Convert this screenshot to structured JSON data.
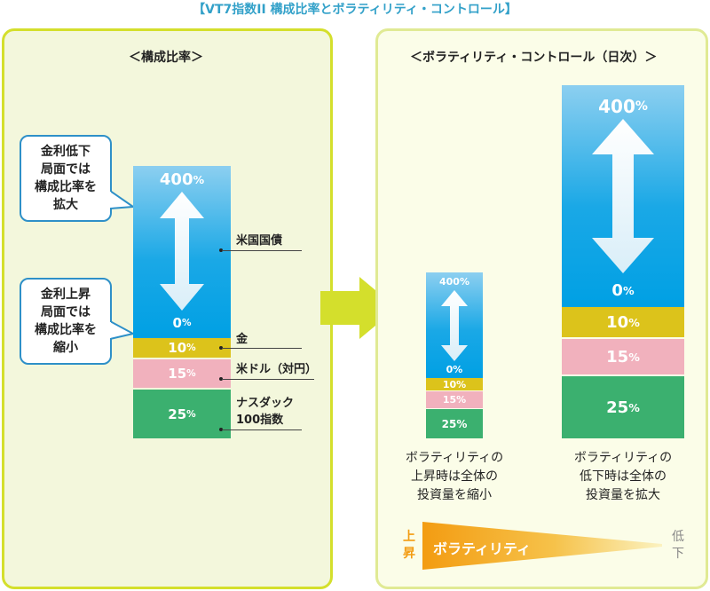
{
  "title": "【VT7指数II 構成比率とボラティリティ・コントロール】",
  "left": {
    "heading": "＜構成比率＞",
    "callout_top": "金利低下\n局面では\n構成比率を\n拡大",
    "callout_bottom": "金利上昇\n局面では\n構成比率を\n縮小",
    "bar": {
      "blue_top": "400",
      "blue_bottom": "0",
      "gold": "10",
      "pink": "15",
      "green": "25",
      "unit": "%"
    },
    "labels": {
      "treasury": "米国国債",
      "gold": "金",
      "usd": "米ドル（対円）",
      "nasdaq": "ナスダック\n100指数"
    }
  },
  "right": {
    "heading": "＜ボラティリティ・コントロール（日次）＞",
    "small_bar": {
      "blue_top": "400%",
      "blue_bottom": "0%",
      "gold": "10%",
      "pink": "15%",
      "green": "25%"
    },
    "large_bar": {
      "blue_top": "400",
      "blue_bottom": "0",
      "gold": "10",
      "pink": "15",
      "green": "25",
      "unit": "%"
    },
    "caption_left": "ボラティリティの\n上昇時は全体の\n投資量を縮小",
    "caption_right": "ボラティリティの\n低下時は全体の\n投資量を拡大",
    "scale": {
      "up": "上\n昇",
      "label": "ボラティリティ",
      "down": "低\n下"
    }
  },
  "colors": {
    "blue": "#00a0e4",
    "gold": "#dcc31b",
    "pink": "#f1b1bd",
    "green": "#3bb06f",
    "accent_green": "#d4df2c",
    "orange": "#f39c12"
  }
}
